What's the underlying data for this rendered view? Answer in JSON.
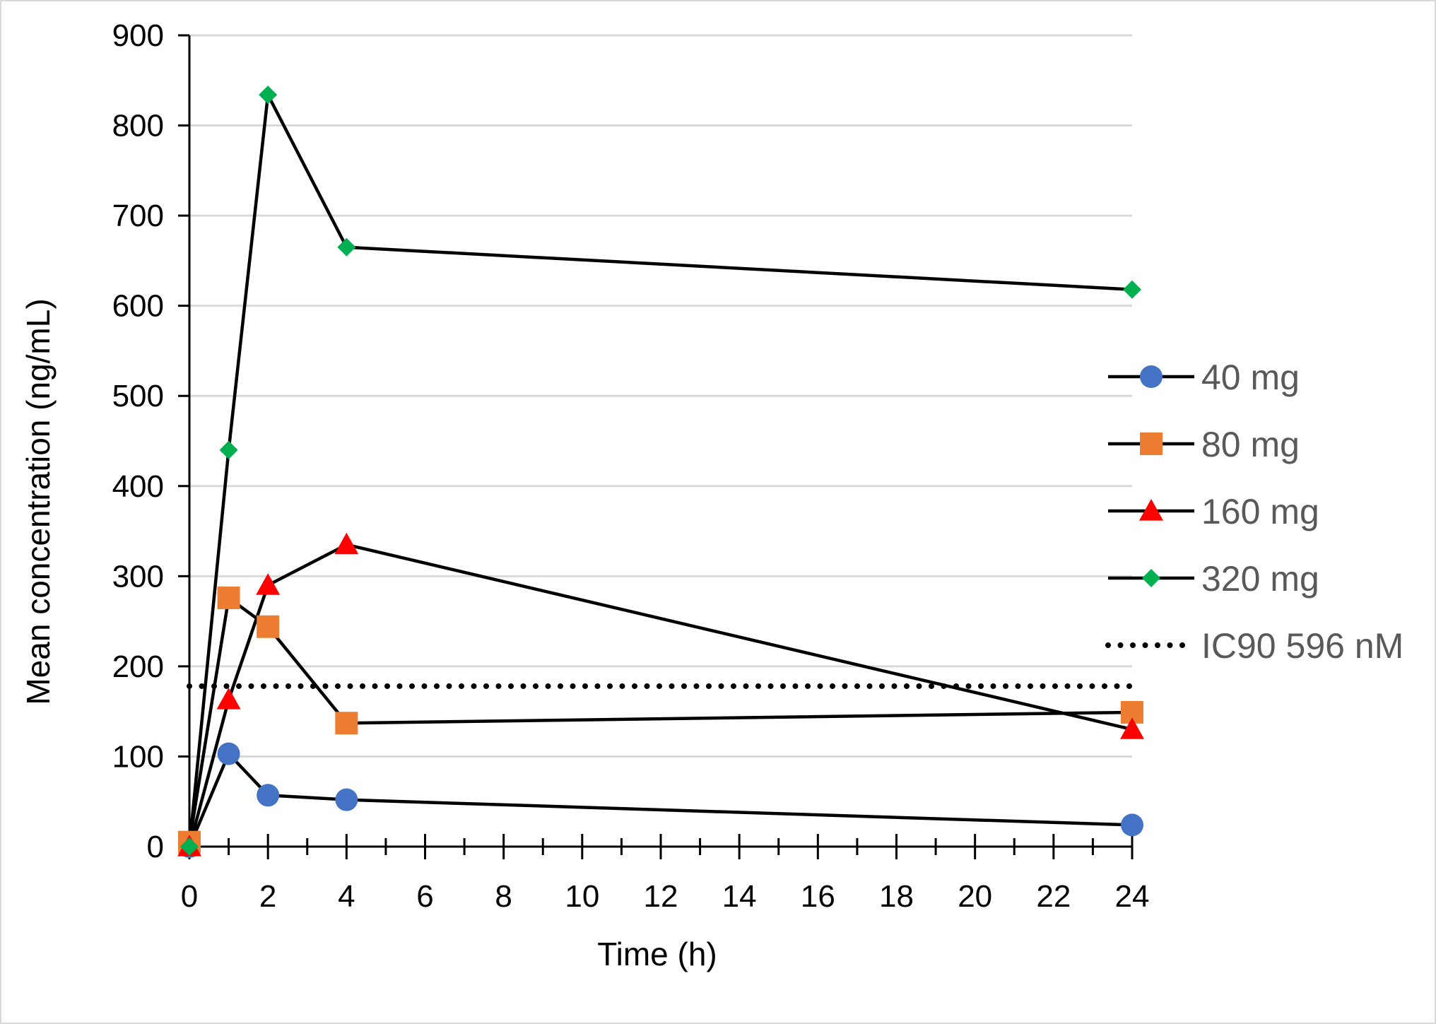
{
  "chart_data": {
    "type": "line",
    "xlabel": "Time (h)",
    "ylabel": "Mean concentration (ng/mL)",
    "xlim": [
      0,
      24
    ],
    "ylim": [
      0,
      900
    ],
    "x_ticks": [
      0,
      2,
      4,
      6,
      8,
      10,
      12,
      14,
      16,
      18,
      20,
      22,
      24
    ],
    "y_ticks": [
      0,
      100,
      200,
      300,
      400,
      500,
      600,
      700,
      800,
      900
    ],
    "grid": "horizontal",
    "legend_position": "right",
    "series": [
      {
        "name": "40 mg",
        "marker": "circle",
        "color": "#4472C4",
        "x": [
          0,
          1,
          2,
          4,
          24
        ],
        "values": [
          0,
          103,
          57,
          52,
          24
        ]
      },
      {
        "name": "80 mg",
        "marker": "square",
        "color": "#ED7D31",
        "x": [
          0,
          1,
          2,
          4,
          24
        ],
        "values": [
          5,
          276,
          244,
          137,
          149
        ]
      },
      {
        "name": "160 mg",
        "marker": "triangle",
        "color": "#FF0000",
        "x": [
          0,
          1,
          2,
          4,
          24
        ],
        "values": [
          0,
          163,
          290,
          335,
          130
        ]
      },
      {
        "name": "320 mg",
        "marker": "diamond",
        "color": "#00B050",
        "x": [
          0,
          1,
          2,
          4,
          24
        ],
        "values": [
          0,
          440,
          834,
          665,
          618
        ]
      }
    ],
    "reference_line": {
      "name": "IC90 596 nM",
      "y": 178,
      "style": "dotted",
      "color": "#000000"
    },
    "line_color": "#000000"
  }
}
